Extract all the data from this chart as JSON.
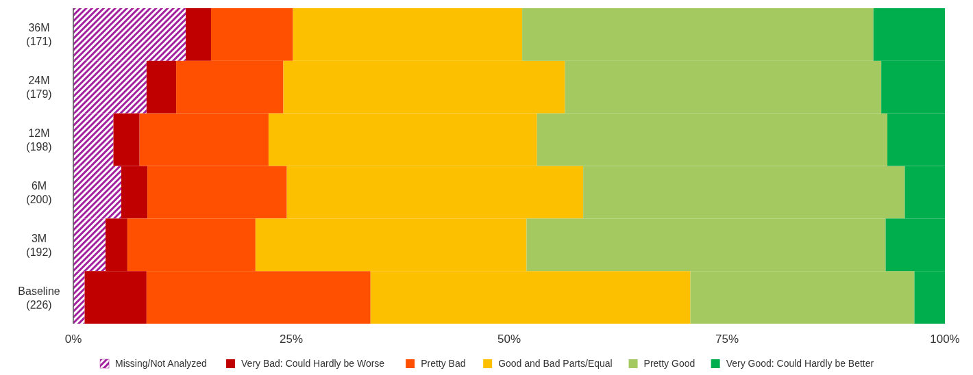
{
  "chart_data": {
    "type": "bar",
    "orientation": "horizontal",
    "stacked": true,
    "categories": [
      "36M\n(171)",
      "24M\n(179)",
      "12M\n(198)",
      "6M\n(200)",
      "3M\n(192)",
      "Baseline\n(226)"
    ],
    "series": [
      {
        "name": "Missing/Not Analyzed",
        "color": "#a3209e",
        "values": [
          12.9,
          8.4,
          4.6,
          5.5,
          3.7,
          1.3
        ]
      },
      {
        "name": "Very Bad: Could Hardly be Worse",
        "color": "#c00000",
        "values": [
          2.9,
          3.4,
          3.0,
          3.0,
          2.5,
          7.1
        ]
      },
      {
        "name": "Pretty Bad",
        "color": "#ff4f00",
        "values": [
          9.4,
          12.3,
          14.8,
          16.0,
          14.7,
          25.7
        ]
      },
      {
        "name": "Good and Bad Parts/Equal",
        "color": "#fcc000",
        "values": [
          26.3,
          32.3,
          30.8,
          34.0,
          31.1,
          36.7
        ]
      },
      {
        "name": "Pretty Good",
        "color": "#a3c960",
        "values": [
          40.3,
          36.3,
          40.2,
          36.9,
          41.2,
          25.7
        ]
      },
      {
        "name": "Very Good: Could Hardly be Better",
        "color": "#00ae4d",
        "values": [
          8.2,
          7.3,
          6.6,
          4.6,
          6.8,
          3.5
        ]
      }
    ],
    "xlim": [
      0,
      100
    ],
    "xticks": [
      {
        "value": 0,
        "label": "0%"
      },
      {
        "value": 25,
        "label": "25%"
      },
      {
        "value": 50,
        "label": "50%"
      },
      {
        "value": 75,
        "label": "75%"
      },
      {
        "value": 100,
        "label": "100%"
      }
    ],
    "legend": "bottom"
  }
}
